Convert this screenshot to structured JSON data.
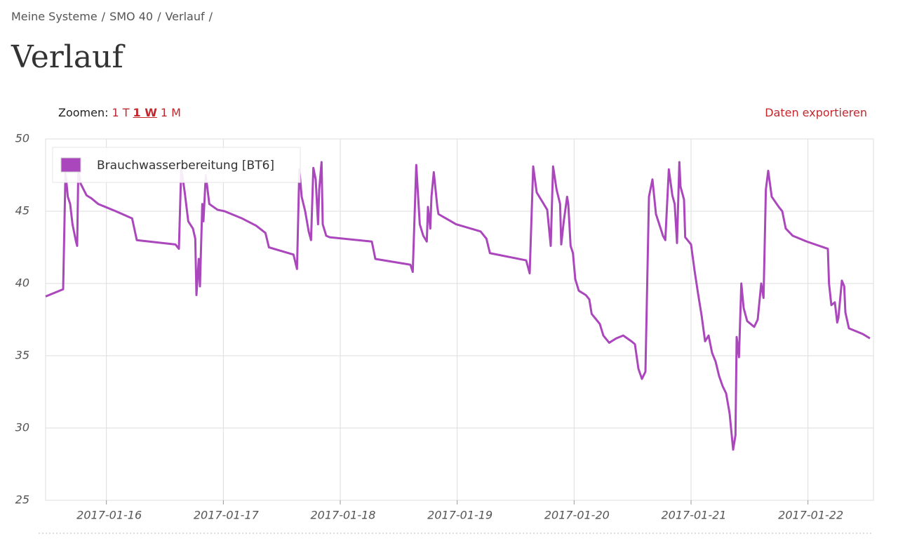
{
  "breadcrumb": {
    "items": [
      "Meine Systeme",
      "SMO 40",
      "Verlauf"
    ],
    "separator": "/"
  },
  "page_title": "Verlauf",
  "zoom": {
    "label": "Zoomen:",
    "options": [
      "1 T",
      "1 W",
      "1 M"
    ],
    "active": 1
  },
  "export": "Daten exportieren",
  "chart_data": {
    "type": "line",
    "legend": "upper left",
    "grid": true,
    "xlim": [
      15.48,
      22.56
    ],
    "xticks": [
      {
        "value": 16,
        "label": "2017-01-16"
      },
      {
        "value": 17,
        "label": "2017-01-17"
      },
      {
        "value": 18,
        "label": "2017-01-18"
      },
      {
        "value": 19,
        "label": "2017-01-19"
      },
      {
        "value": 20,
        "label": "2017-01-20"
      },
      {
        "value": 21,
        "label": "2017-01-21"
      },
      {
        "value": 22,
        "label": "2017-01-22"
      }
    ],
    "ylim": [
      25,
      50
    ],
    "yticks": [
      25,
      30,
      35,
      40,
      45,
      50
    ],
    "x": [
      15.48,
      15.63,
      15.65,
      15.67,
      15.69,
      15.71,
      15.74,
      15.75,
      15.76,
      15.78,
      15.83,
      15.87,
      15.93,
      15.99,
      16.08,
      16.22,
      16.26,
      16.59,
      16.62,
      16.64,
      16.67,
      16.7,
      16.74,
      16.76,
      16.77,
      16.79,
      16.8,
      16.82,
      16.83,
      16.85,
      16.88,
      16.95,
      17.01,
      17.16,
      17.28,
      17.36,
      17.39,
      17.6,
      17.63,
      17.65,
      17.67,
      17.7,
      17.73,
      17.75,
      17.77,
      17.79,
      17.81,
      17.82,
      17.84,
      17.85,
      17.88,
      17.91,
      18.27,
      18.3,
      18.6,
      18.62,
      18.65,
      18.68,
      18.71,
      18.74,
      18.75,
      18.77,
      18.78,
      18.8,
      18.83,
      18.84,
      18.99,
      19.2,
      19.25,
      19.28,
      19.59,
      19.62,
      19.65,
      19.68,
      19.74,
      19.77,
      19.8,
      19.82,
      19.85,
      19.88,
      19.89,
      19.91,
      19.94,
      19.95,
      19.97,
      19.99,
      20.01,
      20.04,
      20.1,
      20.13,
      20.15,
      20.19,
      20.22,
      20.25,
      20.3,
      20.36,
      20.42,
      20.49,
      20.52,
      20.55,
      20.58,
      20.61,
      20.64,
      20.67,
      20.7,
      20.76,
      20.78,
      20.81,
      20.84,
      20.86,
      20.88,
      20.9,
      20.91,
      20.94,
      20.95,
      21.0,
      21.03,
      21.06,
      21.09,
      21.12,
      21.15,
      21.18,
      21.21,
      21.24,
      21.27,
      21.3,
      21.33,
      21.36,
      21.38,
      21.39,
      21.41,
      21.43,
      21.45,
      21.48,
      21.54,
      21.57,
      21.6,
      21.62,
      21.64,
      21.66,
      21.69,
      21.75,
      21.78,
      21.81,
      21.87,
      21.99,
      22.17,
      22.18,
      22.2,
      22.23,
      22.25,
      22.26,
      22.29,
      22.31,
      22.32,
      22.35,
      22.41,
      22.47,
      22.53
    ],
    "series": [
      {
        "name": "Brauchwasserbereitung [BT6]",
        "color": "#ab47bc",
        "values": [
          39.1,
          39.6,
          47.7,
          46.0,
          45.5,
          44.1,
          42.9,
          42.6,
          48.0,
          46.9,
          46.1,
          45.9,
          45.5,
          45.3,
          45.0,
          44.5,
          43.0,
          42.7,
          42.4,
          48.0,
          46.3,
          44.3,
          43.8,
          43.1,
          39.2,
          41.7,
          39.8,
          45.5,
          44.3,
          47.5,
          45.5,
          45.1,
          45.0,
          44.5,
          44.0,
          43.5,
          42.5,
          42.0,
          41.0,
          47.9,
          46.0,
          45.0,
          43.6,
          43.0,
          48.0,
          47.2,
          44.1,
          46.5,
          48.4,
          44.1,
          43.3,
          43.2,
          42.9,
          41.7,
          41.3,
          40.8,
          48.2,
          44.1,
          43.3,
          42.9,
          45.3,
          43.8,
          46.0,
          47.7,
          45.3,
          44.8,
          44.1,
          43.6,
          43.1,
          42.1,
          41.6,
          40.7,
          48.1,
          46.3,
          45.5,
          45.1,
          42.6,
          48.1,
          46.5,
          45.5,
          42.7,
          44.2,
          46.0,
          45.5,
          42.6,
          42.1,
          40.3,
          39.5,
          39.2,
          38.9,
          37.9,
          37.5,
          37.2,
          36.4,
          35.9,
          36.2,
          36.4,
          36.0,
          35.8,
          34.1,
          33.4,
          33.9,
          46.0,
          47.2,
          44.8,
          43.3,
          43.0,
          47.9,
          46.1,
          45.5,
          42.8,
          48.4,
          46.7,
          45.8,
          43.2,
          42.7,
          40.9,
          39.3,
          37.8,
          36.0,
          36.4,
          35.2,
          34.6,
          33.6,
          32.9,
          32.4,
          31.0,
          28.5,
          29.5,
          36.3,
          34.9,
          40.0,
          38.3,
          37.4,
          37.0,
          37.5,
          40.0,
          39.0,
          46.5,
          47.8,
          46.0,
          45.3,
          45.0,
          43.8,
          43.3,
          42.9,
          42.4,
          40.0,
          38.5,
          38.7,
          37.3,
          37.6,
          40.2,
          39.8,
          38.0,
          36.9,
          36.7,
          36.5,
          36.2
        ]
      }
    ]
  }
}
